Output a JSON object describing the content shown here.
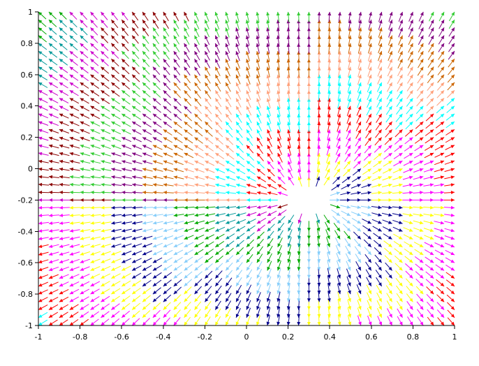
{
  "chart_data": {
    "type": "quiver",
    "title": "",
    "xlabel": "",
    "ylabel": "",
    "xlim": [
      -1,
      1
    ],
    "ylim": [
      -1,
      1
    ],
    "x_ticks": [
      "-1",
      "-0.8",
      "-0.6",
      "-0.4",
      "-0.2",
      "0",
      "0.2",
      "0.4",
      "0.6",
      "0.8",
      "1"
    ],
    "y_ticks": [
      "1",
      "0.8",
      "0.6",
      "0.4",
      "0.2",
      "0",
      "-0.2",
      "-0.4",
      "-0.6",
      "-0.8",
      "-1"
    ],
    "grid": false,
    "legend": "none",
    "field": {
      "description_source": "vector field radiating away from a central point",
      "center": [
        0.3,
        -0.2
      ],
      "grid_step": 0.05,
      "x_range": [
        -1,
        1
      ],
      "y_range": [
        -1,
        1
      ],
      "empty_radius": 0.15
    },
    "colors": [
      "#8B0000",
      "#CC00CC",
      "#009999",
      "#00AA00",
      "#87CEFA",
      "#00008B",
      "#FFFF00",
      "#FF00FF",
      "#FF0000",
      "#00FFFF",
      "#FFA07A",
      "#CC6600",
      "#800080",
      "#33CC33"
    ]
  }
}
